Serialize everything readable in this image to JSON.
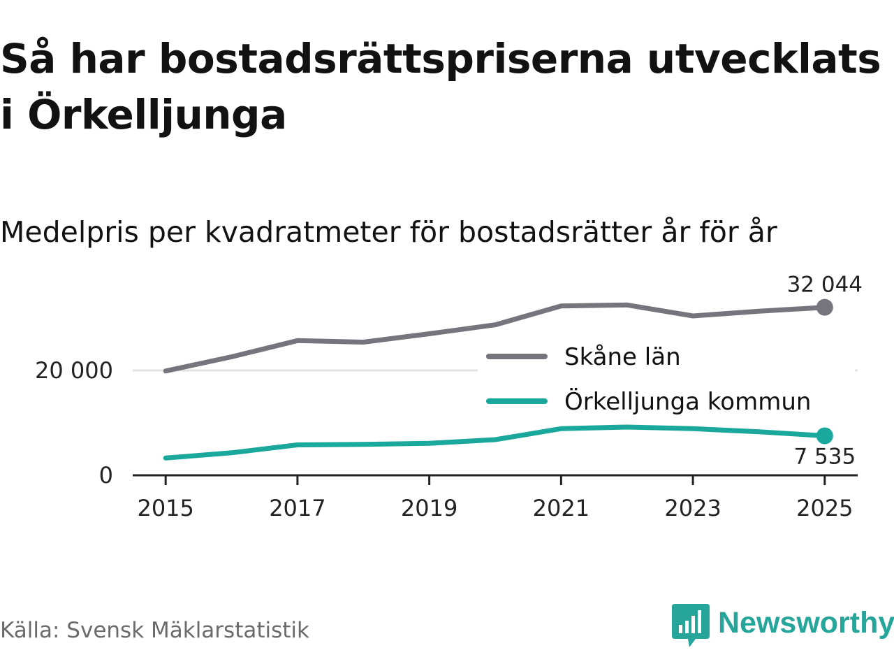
{
  "title": "Så har bostadsrättspriserna utvecklats i Örkelljunga",
  "subtitle": "Medelpris per kvadratmeter för bostadsrätter år för år",
  "source": "Källa: Svensk Mäklarstatistik",
  "brand": {
    "name": "Newsworthy",
    "color": "#26a69a"
  },
  "chart_data": {
    "type": "line",
    "title": "Så har bostadsrättspriserna utvecklats i Örkelljunga",
    "subtitle": "Medelpris per kvadratmeter för bostadsrätter år för år",
    "xlabel": "",
    "ylabel": "",
    "x": [
      2015,
      2016,
      2017,
      2018,
      2019,
      2020,
      2021,
      2022,
      2023,
      2024,
      2025
    ],
    "x_ticks": [
      2015,
      2017,
      2019,
      2021,
      2023,
      2025
    ],
    "x_tick_labels": [
      "2015",
      "2017",
      "2019",
      "2021",
      "2023",
      "2025"
    ],
    "xlim": [
      2014.5,
      2025.5
    ],
    "y_ticks": [
      0,
      20000
    ],
    "y_tick_labels": [
      "0",
      "20 000"
    ],
    "ylim": [
      0,
      36000
    ],
    "grid": "horizontal",
    "legend_position": "center-right",
    "series": [
      {
        "name": "Skåne län",
        "color": "#76757d",
        "values": [
          19900,
          22600,
          25700,
          25400,
          27000,
          28700,
          32300,
          32500,
          30400,
          31300,
          32044
        ],
        "end_label": "32 044",
        "end_label_position": "above"
      },
      {
        "name": "Örkelljunga kommun",
        "color": "#1ba89c",
        "values": [
          3300,
          4300,
          5800,
          5900,
          6100,
          6800,
          8900,
          9200,
          8900,
          8300,
          7535
        ],
        "end_label": "7 535",
        "end_label_position": "below"
      }
    ]
  }
}
